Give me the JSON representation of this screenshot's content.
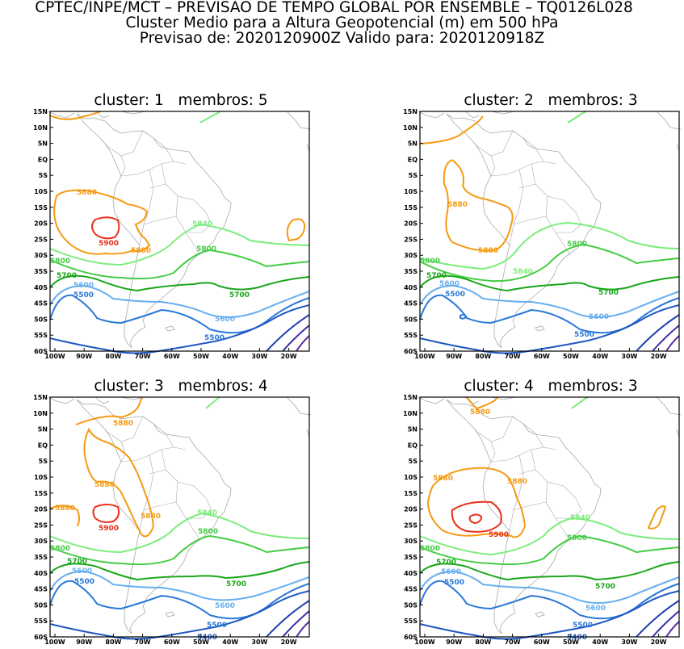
{
  "header": {
    "line1": "CPTEC/INPE/MCT – PREVISAO DE TEMPO GLOBAL POR ENSEMBLE – TQ0126L028",
    "line2": "Cluster Medio para a Altura Geopotencial (m) em 500 hPa",
    "line3": "Previsao de: 2020120900Z   Valido para: 2020120918Z"
  },
  "axes": {
    "lat_labels": [
      "15N",
      "10N",
      "5N",
      "EQ",
      "5S",
      "10S",
      "15S",
      "20S",
      "25S",
      "30S",
      "35S",
      "40S",
      "45S",
      "50S",
      "55S",
      "60S"
    ],
    "lon_labels": [
      "100W",
      "90W",
      "80W",
      "70W",
      "60W",
      "50W",
      "40W",
      "30W",
      "20W"
    ]
  },
  "colors": {
    "c5900": "#e8301c",
    "c5880": "#f59a12",
    "c5840": "#7ced7c",
    "c5800": "#44cc44",
    "c5700": "#1aa61a",
    "c5600": "#68aff0",
    "c5500": "#2a78d8",
    "c5400": "#1f57c2",
    "c5300": "#1f3fb0",
    "c5200": "#3a2fa8",
    "c5100": "#5a2a9e",
    "coast": "#a8a8a8"
  },
  "panels": [
    {
      "title": "cluster: 1   membros: 5",
      "labels": [
        "5900",
        "5880",
        "5880",
        "5840",
        "5800",
        "5800",
        "5700",
        "5700",
        "5600",
        "5600",
        "5500",
        "5500"
      ]
    },
    {
      "title": "cluster: 2   membros: 3",
      "labels": [
        "5880",
        "5880",
        "5840",
        "5800",
        "5800",
        "5700",
        "5700",
        "5600",
        "5600",
        "5500",
        "5500"
      ]
    },
    {
      "title": "cluster: 3   membros: 4",
      "labels": [
        "5900",
        "5880",
        "5880",
        "5880",
        "5880",
        "5840",
        "5800",
        "5800",
        "5700",
        "5700",
        "5600",
        "5600",
        "5500",
        "5500",
        "5400"
      ]
    },
    {
      "title": "cluster: 4   membros: 3",
      "labels": [
        "5900",
        "5880",
        "5880",
        "5880",
        "5840",
        "5800",
        "5800",
        "5700",
        "5700",
        "5600",
        "5600",
        "5500",
        "5500",
        "5400"
      ]
    }
  ]
}
